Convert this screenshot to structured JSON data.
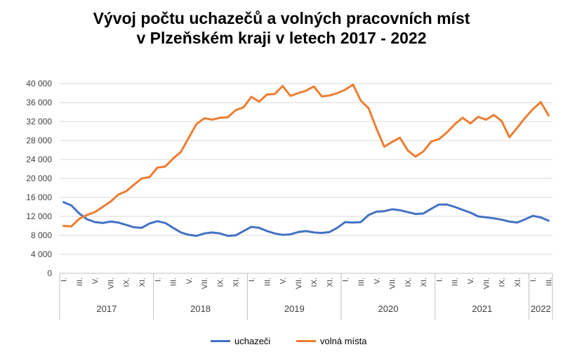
{
  "chart_data": {
    "type": "line",
    "title_line1": "Vývoj počtu uchazečů a volných pracovních míst",
    "title_line2": "v Plzeňském kraji v letech 2017 - 2022",
    "ylim": [
      0,
      40000
    ],
    "yticks": [
      "0",
      "4 000",
      "8 000",
      "12 000",
      "16 000",
      "20 000",
      "24 000",
      "28 000",
      "32 000",
      "36 000",
      "40 000"
    ],
    "grid": true,
    "legend_position": "bottom",
    "month_labels": [
      "I.",
      "III.",
      "V.",
      "VII.",
      "IX.",
      "XI."
    ],
    "years": [
      "2017",
      "2018",
      "2019",
      "2020",
      "2021",
      "2022"
    ],
    "series": [
      {
        "name": "uchazeči",
        "color": "#4472c4",
        "values": [
          15000,
          14300,
          12600,
          11400,
          10800,
          10600,
          10900,
          10700,
          10200,
          9700,
          9600,
          10500,
          11000,
          10600,
          9600,
          8600,
          8100,
          7900,
          8400,
          8600,
          8400,
          7900,
          8000,
          8900,
          9800,
          9600,
          8900,
          8400,
          8100,
          8200,
          8700,
          8900,
          8600,
          8500,
          8700,
          9600,
          10800,
          10700,
          10800,
          12300,
          13000,
          13100,
          13500,
          13300,
          12900,
          12500,
          12600,
          13600,
          14500,
          14500,
          14000,
          13400,
          12800,
          12000,
          11800,
          11600,
          11300,
          10900,
          10700,
          11400,
          12100,
          11800,
          11100
        ]
      },
      {
        "name": "volná místa",
        "color": "#ed7d31",
        "values": [
          10000,
          9900,
          11500,
          12300,
          12900,
          14000,
          15100,
          16600,
          17300,
          18700,
          20000,
          20300,
          22300,
          22500,
          24200,
          25600,
          28600,
          31500,
          32700,
          32400,
          32800,
          32900,
          34400,
          35000,
          37200,
          36200,
          37700,
          37800,
          39500,
          37400,
          38000,
          38500,
          39400,
          37300,
          37500,
          38000,
          38700,
          39800,
          36400,
          34800,
          30500,
          26700,
          27700,
          28600,
          25900,
          24600,
          25700,
          27800,
          28300,
          29700,
          31400,
          32800,
          31600,
          33000,
          32400,
          33400,
          32100,
          28700,
          30700,
          32800,
          34600,
          36100,
          33300
        ]
      }
    ]
  }
}
